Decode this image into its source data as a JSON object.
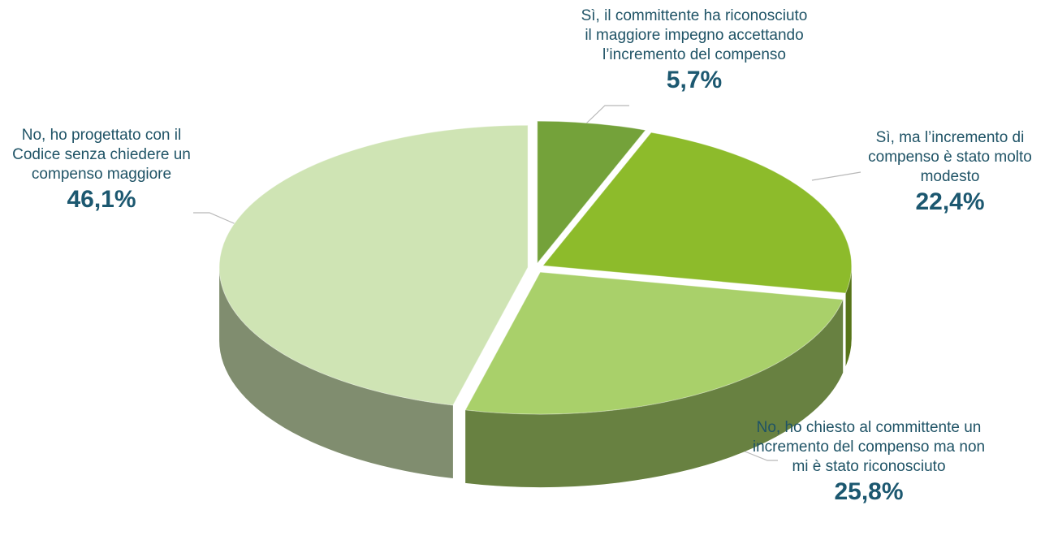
{
  "chart_data": {
    "type": "pie",
    "categories": [
      "Sì, il committente ha riconosciuto il maggiore impegno accettando l’incremento del compenso",
      "Sì, ma l’incremento di compenso è stato molto modesto",
      "No, ho chiesto al committente un incremento del compenso ma non mi è stato riconosciuto",
      "No, ho progettato con il Codice senza chiedere un compenso maggiore"
    ],
    "values": [
      5.7,
      22.4,
      25.8,
      46.1
    ],
    "value_labels": [
      "5,7%",
      "22,4%",
      "25,8%",
      "46,1%"
    ],
    "colors": [
      "#74a23a",
      "#8dbb2b",
      "#a9d06a",
      "#cfe4b4"
    ]
  }
}
